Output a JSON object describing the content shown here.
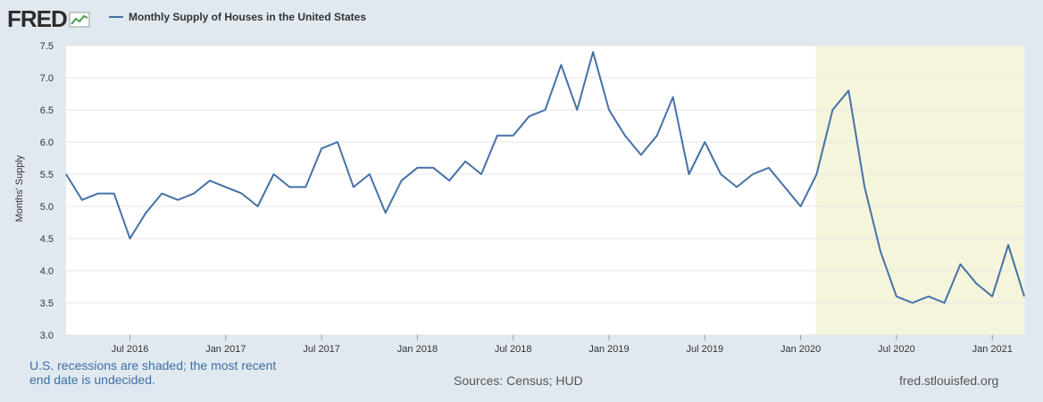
{
  "header": {
    "logo_text": "FRED",
    "legend_label": "Monthly Supply of Houses in the United States"
  },
  "footer": {
    "note": "U.S. recessions are shaded; the most recent end date is undecided.",
    "sources": "Sources: Census; HUD",
    "site": "fred.stlouisfed.org"
  },
  "colors": {
    "line": "#4572a7",
    "recession": "#f5f5dc",
    "background": "#e1e9f0",
    "plot": "#ffffff",
    "grid": "#e6e6e6"
  },
  "chart_data": {
    "type": "line",
    "title": "Monthly Supply of Houses in the United States",
    "ylabel": "Months' Supply",
    "xlabel": "",
    "ylim": [
      3.0,
      7.5
    ],
    "yticks": [
      "3.0",
      "3.5",
      "4.0",
      "4.5",
      "5.0",
      "5.5",
      "6.0",
      "6.5",
      "7.0",
      "7.5"
    ],
    "xticks": [
      {
        "label": "Jul 2016",
        "index": 4
      },
      {
        "label": "Jan 2017",
        "index": 10
      },
      {
        "label": "Jul 2017",
        "index": 16
      },
      {
        "label": "Jan 2018",
        "index": 22
      },
      {
        "label": "Jul 2018",
        "index": 28
      },
      {
        "label": "Jan 2019",
        "index": 34
      },
      {
        "label": "Jul 2019",
        "index": 40
      },
      {
        "label": "Jan 2020",
        "index": 46
      },
      {
        "label": "Jul 2020",
        "index": 52
      },
      {
        "label": "Jan 2021",
        "index": 58
      }
    ],
    "recession": {
      "start_index": 47,
      "end_index": 60
    },
    "series": [
      {
        "name": "Monthly Supply of Houses in the United States",
        "start": "Mar 2016",
        "values": [
          5.5,
          5.1,
          5.2,
          5.2,
          4.5,
          4.9,
          5.2,
          5.1,
          5.2,
          5.4,
          5.3,
          5.2,
          5.0,
          5.5,
          5.3,
          5.3,
          5.9,
          6.0,
          5.3,
          5.5,
          4.9,
          5.4,
          5.6,
          5.6,
          5.4,
          5.7,
          5.5,
          6.1,
          6.1,
          6.4,
          6.5,
          7.2,
          6.5,
          7.4,
          6.5,
          6.1,
          5.8,
          6.1,
          6.7,
          5.5,
          6.0,
          5.5,
          5.3,
          5.5,
          5.6,
          5.3,
          5.0,
          5.5,
          6.5,
          6.8,
          5.3,
          4.3,
          3.6,
          3.5,
          3.6,
          3.5,
          4.1,
          3.8,
          3.6,
          4.4,
          3.6
        ]
      }
    ]
  }
}
